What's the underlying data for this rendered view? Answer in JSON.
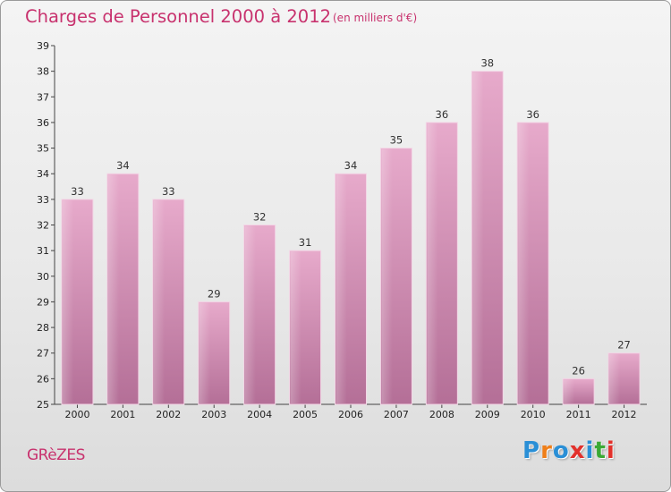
{
  "title": "Charges de Personnel 2000 à 2012",
  "unit_note": "(en milliers d'€)",
  "commune": "GRèZES",
  "logo": {
    "letters": [
      "P",
      "r",
      "o",
      "x",
      "i",
      "t",
      "i"
    ],
    "colors": [
      "#2a8fd6",
      "#ef7f1a",
      "#2a8fd6",
      "#e2312b",
      "#2a8fd6",
      "#3aa935",
      "#e2312b"
    ]
  },
  "colors": {
    "accent": "#c8326e",
    "bar_top": "#e7aacb",
    "bar_bottom": "#b46f97"
  },
  "chart_data": {
    "type": "bar",
    "title": "Charges de Personnel 2000 à 2012",
    "subtitle": "(en milliers d'€)",
    "categories": [
      "2000",
      "2001",
      "2002",
      "2003",
      "2004",
      "2005",
      "2006",
      "2007",
      "2008",
      "2009",
      "2010",
      "2011",
      "2012"
    ],
    "values": [
      33,
      34,
      33,
      29,
      32,
      31,
      34,
      35,
      36,
      38,
      36,
      26,
      27
    ],
    "ylim": [
      25,
      39
    ],
    "yticks": [
      25,
      26,
      27,
      28,
      29,
      30,
      31,
      32,
      33,
      34,
      35,
      36,
      37,
      38,
      39
    ],
    "grid": false,
    "legend": "none"
  }
}
